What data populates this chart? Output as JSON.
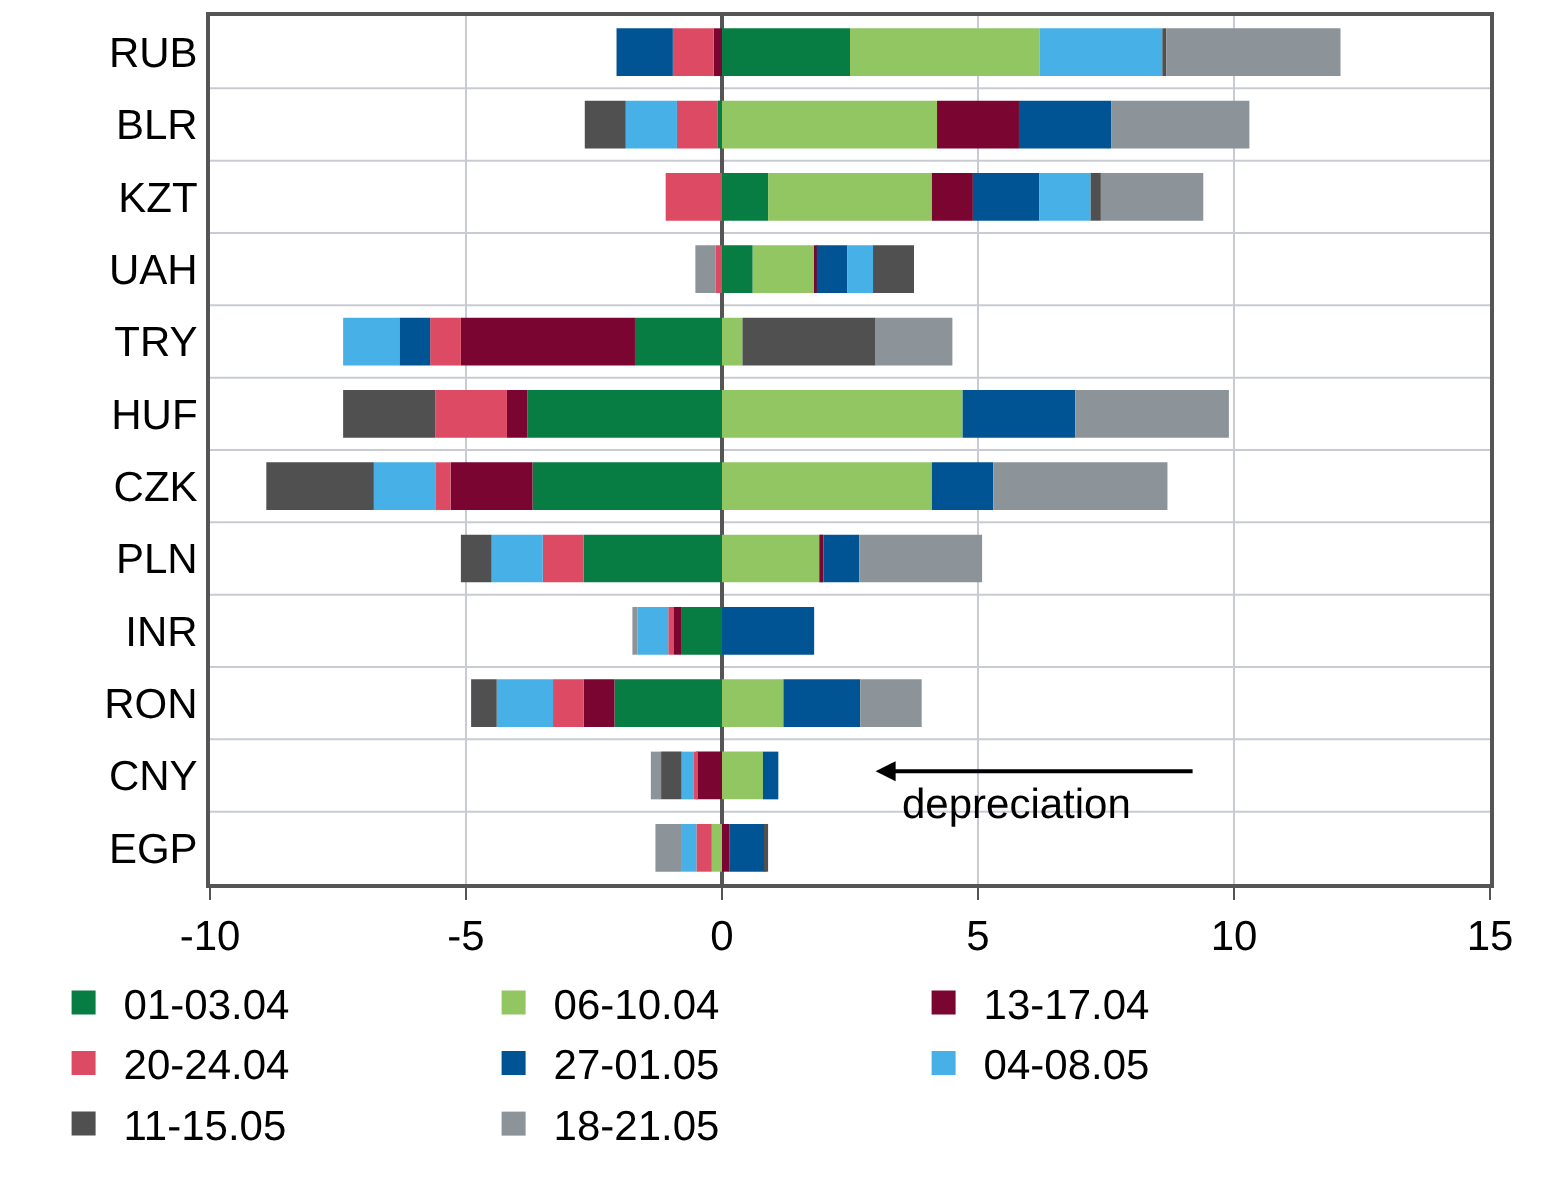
{
  "chart_data": {
    "type": "bar",
    "orientation": "horizontal",
    "stacked": true,
    "categories": [
      "RUB",
      "BLR",
      "KZT",
      "UAH",
      "TRY",
      "HUF",
      "CZK",
      "PLN",
      "INR",
      "RON",
      "CNY",
      "EGP"
    ],
    "series": [
      {
        "name": "01-03.04",
        "color": "#077c43",
        "values": [
          2.5,
          -0.08,
          0.9,
          0.6,
          -1.7,
          -3.8,
          -3.7,
          -2.7,
          -0.8,
          -2.1,
          0,
          0
        ]
      },
      {
        "name": "06-10.04",
        "color": "#92c663",
        "values": [
          3.7,
          4.2,
          3.2,
          1.2,
          0.4,
          4.7,
          4.1,
          1.9,
          0,
          1.2,
          0.8,
          -0.2
        ]
      },
      {
        "name": "13-17.04",
        "color": "#7a0530",
        "values": [
          -0.16,
          1.6,
          0.8,
          0.05,
          -3.4,
          -0.4,
          -1.6,
          0.08,
          -0.15,
          -0.6,
          -0.5,
          0.15
        ]
      },
      {
        "name": "20-24.04",
        "color": "#dc4a63",
        "values": [
          -0.8,
          -0.8,
          -1.1,
          -0.12,
          -0.6,
          -1.4,
          -0.3,
          -0.8,
          -0.1,
          -0.6,
          -0.06,
          -0.3
        ]
      },
      {
        "name": "27-01.05",
        "color": "#005493",
        "values": [
          -1.1,
          1.8,
          1.3,
          0.6,
          -0.6,
          2.2,
          1.2,
          0.7,
          1.8,
          1.5,
          0.3,
          0.7
        ]
      },
      {
        "name": "04-08.05",
        "color": "#47b0e6",
        "values": [
          2.4,
          -1.0,
          1.0,
          0.5,
          -1.1,
          0,
          -1.2,
          -1.0,
          -0.6,
          -1.1,
          -0.23,
          -0.3
        ]
      },
      {
        "name": "11-15.05",
        "color": "#505050",
        "values": [
          0.08,
          -0.8,
          0.2,
          0.8,
          2.6,
          -1.8,
          -2.1,
          -0.6,
          0,
          -0.5,
          -0.4,
          0.05
        ]
      },
      {
        "name": "18-21.05",
        "color": "#8c9399",
        "values": [
          3.4,
          2.7,
          2.0,
          -0.4,
          1.5,
          3.0,
          3.4,
          2.4,
          -0.1,
          1.2,
          -0.2,
          -0.5
        ]
      }
    ],
    "xlim": [
      -10,
      15
    ],
    "xticks": [
      -10,
      -5,
      0,
      5,
      10,
      15
    ],
    "grid": true,
    "legend": "bottom",
    "annotations": [
      "depreciation"
    ]
  }
}
